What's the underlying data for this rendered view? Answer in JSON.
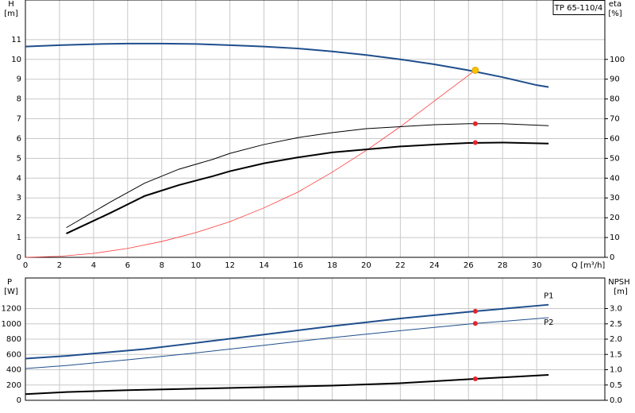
{
  "chart_data": [
    {
      "type": "line",
      "title": "TP 65-110/4",
      "y_label": "H",
      "y_unit": "[m]",
      "y2_label": "eta",
      "y2_unit": "[%]",
      "x_label": "Q [m³/h]",
      "xlim": [
        0,
        34
      ],
      "xticks": [
        0,
        2,
        4,
        6,
        8,
        10,
        12,
        14,
        16,
        18,
        20,
        22,
        24,
        26,
        28,
        30
      ],
      "ylim": [
        0,
        13
      ],
      "yticks": [
        0,
        1,
        2,
        3,
        4,
        5,
        6,
        7,
        8,
        9,
        10,
        11
      ],
      "y2lim": [
        0,
        130
      ],
      "y2ticks": [
        0,
        10,
        20,
        30,
        40,
        50,
        60,
        70,
        80,
        90,
        100
      ],
      "grid": true,
      "series": [
        {
          "color": "#1f4e8c",
          "width": 2,
          "x": [
            0,
            2,
            4,
            6,
            8,
            10,
            12,
            14,
            16,
            18,
            20,
            22,
            24,
            26,
            28,
            30,
            30.7
          ],
          "values": [
            10.65,
            10.72,
            10.77,
            10.8,
            10.8,
            10.78,
            10.72,
            10.65,
            10.55,
            10.4,
            10.22,
            10.0,
            9.75,
            9.45,
            9.1,
            8.7,
            8.6
          ]
        },
        {
          "color": "#ff3b3b",
          "width": 0.8,
          "x": [
            0,
            2,
            4,
            6,
            8,
            10,
            12,
            14,
            16,
            18,
            20,
            22,
            24,
            26.4
          ],
          "values": [
            0,
            0.05,
            0.2,
            0.45,
            0.8,
            1.25,
            1.8,
            2.5,
            3.3,
            4.3,
            5.4,
            6.6,
            7.9,
            9.45
          ]
        },
        {
          "color": "#000000",
          "width": 1,
          "axis": "y2",
          "x": [
            2.4,
            5,
            7,
            9,
            11,
            12,
            14,
            16,
            18,
            20,
            22,
            24,
            26,
            28,
            30.7
          ],
          "values": [
            15,
            28,
            37.5,
            44.5,
            49.5,
            52.5,
            57,
            60.5,
            63,
            65,
            66,
            67,
            67.5,
            67.5,
            66.5
          ]
        },
        {
          "color": "#000000",
          "width": 2,
          "axis": "y2",
          "x": [
            2.4,
            5,
            7,
            9,
            11,
            12,
            14,
            16,
            18,
            20,
            22,
            24,
            26,
            28,
            30.7
          ],
          "values": [
            12,
            22.5,
            31,
            36.5,
            41,
            43.5,
            47.5,
            50.5,
            53,
            54.5,
            56,
            57,
            57.8,
            58,
            57.5
          ]
        },
        {
          "color": "#e8222b",
          "style": "points",
          "axis": "y2",
          "x": [
            26.4,
            26.4
          ],
          "values": [
            67.5,
            58
          ]
        },
        {
          "color": "#f5c400",
          "style": "points",
          "x": [
            26.4
          ],
          "values": [
            9.45
          ]
        }
      ]
    },
    {
      "type": "line",
      "y_label": "P",
      "y_unit": "[W]",
      "y2_label": "NPSH",
      "y2_unit": "[m]",
      "xlim": [
        0,
        34
      ],
      "xticks": [
        0,
        2,
        4,
        6,
        8,
        10,
        12,
        14,
        16,
        18,
        20,
        22,
        24,
        26,
        28,
        30
      ],
      "ylim": [
        0,
        1600
      ],
      "yticks": [
        0,
        200,
        400,
        600,
        800,
        1000,
        1200
      ],
      "y2lim": [
        0,
        4
      ],
      "y2ticks": [
        {
          "value": 0,
          "label": "0.0"
        },
        {
          "value": 0.5,
          "label": "0.5"
        },
        {
          "value": 1,
          "label": "1.0"
        },
        {
          "value": 1.5,
          "label": "1.5"
        },
        {
          "value": 2,
          "label": "2.0"
        },
        {
          "value": 2.5,
          "label": "2.5"
        },
        {
          "value": 3,
          "label": "3.0"
        }
      ],
      "grid": true,
      "series": [
        {
          "name": "P1",
          "color": "#1f4e8c",
          "width": 2,
          "x": [
            0,
            2.4,
            7,
            10,
            14,
            18,
            22,
            26.4,
            30.7
          ],
          "values": [
            545,
            580,
            670,
            750,
            860,
            970,
            1070,
            1165,
            1250
          ]
        },
        {
          "name": "P2",
          "color": "#1f4e8c",
          "width": 1,
          "x": [
            0,
            2.4,
            6,
            10,
            14,
            18,
            22,
            26.4,
            30.7
          ],
          "values": [
            415,
            455,
            530,
            620,
            720,
            820,
            910,
            1005,
            1080
          ]
        },
        {
          "color": "#000000",
          "width": 2,
          "axis": "y2",
          "x": [
            0,
            2.4,
            6,
            10,
            14,
            18,
            22,
            26.4,
            30.7
          ],
          "values": [
            0.2,
            0.27,
            0.33,
            0.38,
            0.43,
            0.48,
            0.56,
            0.7,
            0.83
          ]
        },
        {
          "color": "#e8222b",
          "style": "points",
          "x": [
            26.4,
            26.4
          ],
          "values": [
            1165,
            1005
          ]
        },
        {
          "color": "#e8222b",
          "style": "points",
          "axis": "y2",
          "x": [
            26.4
          ],
          "values": [
            0.7
          ]
        }
      ]
    }
  ]
}
